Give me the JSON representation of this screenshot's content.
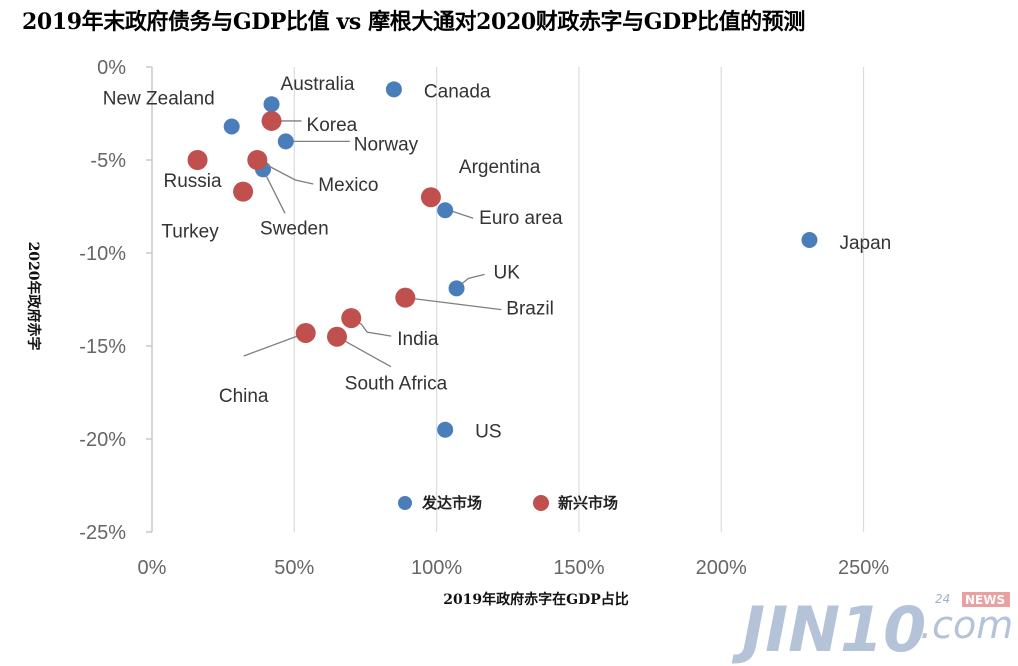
{
  "title": "2019年末政府债务与GDP比值 vs 摩根大通对2020财政赤字与GDP比值的预测",
  "watermark": {
    "main": "JIN10",
    "suffix": ".com",
    "small": "24",
    "news": "NEWS"
  },
  "chart_data": {
    "type": "scatter",
    "xlabel": "2019年政府赤字在GDP占比",
    "ylabel": "2020年政府赤字",
    "xlim": [
      0,
      260
    ],
    "ylim": [
      -25,
      0
    ],
    "xticks": [
      0,
      50,
      100,
      150,
      200,
      250
    ],
    "xtick_labels": [
      "0%",
      "50%",
      "100%",
      "150%",
      "200%",
      "250%"
    ],
    "yticks": [
      0,
      -5,
      -10,
      -15,
      -20,
      -25
    ],
    "ytick_labels": [
      "0%",
      "-5%",
      "-10%",
      "-15%",
      "-20%",
      "-25%"
    ],
    "grid": "vertical",
    "legend_position": "bottom-center",
    "colors": {
      "developed": "#4a7ebb",
      "emerging": "#c0504d"
    },
    "series": [
      {
        "name": "发达市场",
        "key": "developed",
        "points": [
          {
            "label": "Canada",
            "x": 85,
            "y": -1.2
          },
          {
            "label": "Australia",
            "x": 42,
            "y": -2.0
          },
          {
            "label": "New Zealand",
            "x": 28,
            "y": -3.2
          },
          {
            "label": "Norway",
            "x": 47,
            "y": -4.0
          },
          {
            "label": "Sweden",
            "x": 39,
            "y": -5.5
          },
          {
            "label": "Euro area",
            "x": 103,
            "y": -7.7
          },
          {
            "label": "Japan",
            "x": 231,
            "y": -9.3
          },
          {
            "label": "UK",
            "x": 107,
            "y": -11.9
          },
          {
            "label": "US",
            "x": 103,
            "y": -19.5
          }
        ]
      },
      {
        "name": "新兴市场",
        "key": "emerging",
        "points": [
          {
            "label": "Korea",
            "x": 42,
            "y": -2.9
          },
          {
            "label": "Russia",
            "x": 16,
            "y": -5.0
          },
          {
            "label": "Mexico",
            "x": 37,
            "y": -5.0
          },
          {
            "label": "Turkey",
            "x": 32,
            "y": -6.7
          },
          {
            "label": "Argentina",
            "x": 98,
            "y": -7.0
          },
          {
            "label": "Brazil",
            "x": 89,
            "y": -12.4
          },
          {
            "label": "India",
            "x": 70,
            "y": -13.5
          },
          {
            "label": "China",
            "x": 54,
            "y": -14.3
          },
          {
            "label": "South Africa",
            "x": 65,
            "y": -14.5
          }
        ]
      }
    ]
  }
}
